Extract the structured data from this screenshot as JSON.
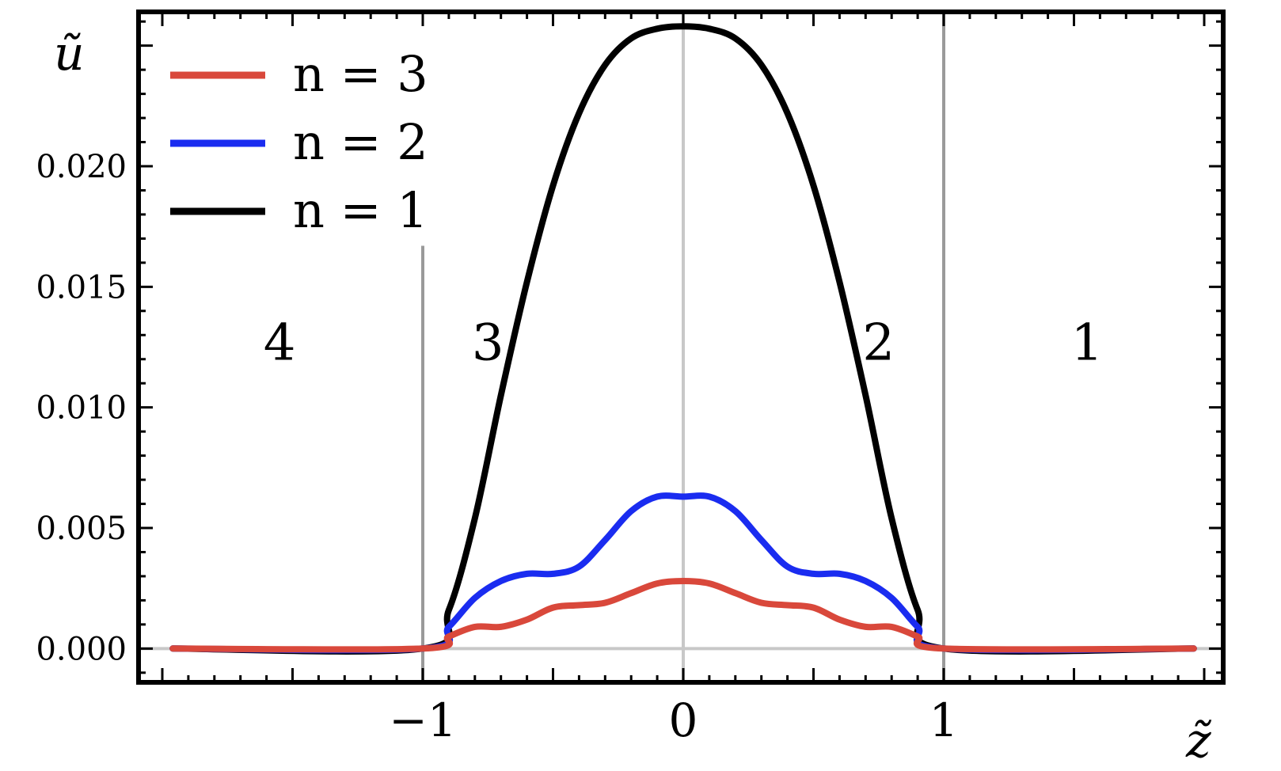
{
  "chart_data": {
    "type": "line",
    "xlabel": "z̃",
    "ylabel": "ũ",
    "xlim": [
      -2,
      2
    ],
    "ylim": [
      -0.0014,
      0.0264
    ],
    "x_ticks": [
      {
        "value": -1,
        "label": "−1"
      },
      {
        "value": 0,
        "label": "0"
      },
      {
        "value": 1,
        "label": "1"
      }
    ],
    "y_ticks": [
      {
        "value": 0.0,
        "label": "0.000"
      },
      {
        "value": 0.005,
        "label": "0.005"
      },
      {
        "value": 0.01,
        "label": "0.010"
      },
      {
        "value": 0.015,
        "label": "0.015"
      },
      {
        "value": 0.02,
        "label": "0.020"
      }
    ],
    "vertical_lines": [
      -1,
      0,
      1
    ],
    "region_labels": [
      {
        "text": "4",
        "x": -1.55,
        "y": 0.0127
      },
      {
        "text": "3",
        "x": -0.75,
        "y": 0.0127
      },
      {
        "text": "2",
        "x": 0.75,
        "y": 0.0127
      },
      {
        "text": "1",
        "x": 1.55,
        "y": 0.0127
      }
    ],
    "legend_position": "top-left",
    "series": [
      {
        "name": "n = 3",
        "color": "#d9483b",
        "x": [
          -1.96,
          -1.0,
          -0.9,
          -0.8,
          -0.7,
          -0.6,
          -0.5,
          -0.4,
          -0.3,
          -0.2,
          -0.1,
          0.0,
          0.1,
          0.2,
          0.3,
          0.4,
          0.5,
          0.6,
          0.7,
          0.8,
          0.9,
          1.0,
          1.96
        ],
        "values": [
          0.0,
          0.0,
          0.0005,
          0.0009,
          0.0009,
          0.0012,
          0.0017,
          0.0018,
          0.0019,
          0.0023,
          0.0027,
          0.0028,
          0.0027,
          0.0023,
          0.0019,
          0.0018,
          0.0017,
          0.0012,
          0.0009,
          0.0009,
          0.0005,
          0.0,
          0.0
        ]
      },
      {
        "name": "n = 2",
        "color": "#1a2cf0",
        "x": [
          -1.96,
          -1.0,
          -0.9,
          -0.8,
          -0.7,
          -0.6,
          -0.5,
          -0.4,
          -0.3,
          -0.2,
          -0.1,
          0.0,
          0.1,
          0.2,
          0.3,
          0.4,
          0.5,
          0.6,
          0.7,
          0.8,
          0.9,
          1.0,
          1.96
        ],
        "values": [
          0.0,
          0.0,
          0.0009,
          0.0021,
          0.0028,
          0.0031,
          0.0031,
          0.0034,
          0.0045,
          0.0057,
          0.0063,
          0.0063,
          0.0063,
          0.0057,
          0.0045,
          0.0034,
          0.0031,
          0.0031,
          0.0028,
          0.0021,
          0.0009,
          0.0,
          0.0
        ]
      },
      {
        "name": "n = 1",
        "color": "#000000",
        "x": [
          -1.96,
          -1.0,
          -0.9,
          -0.8,
          -0.7,
          -0.6,
          -0.5,
          -0.4,
          -0.3,
          -0.2,
          -0.1,
          0.0,
          0.1,
          0.2,
          0.3,
          0.4,
          0.5,
          0.6,
          0.7,
          0.8,
          0.9,
          1.0,
          1.96
        ],
        "values": [
          0.0,
          0.0,
          0.0016,
          0.0054,
          0.0105,
          0.0152,
          0.0192,
          0.0222,
          0.0242,
          0.0253,
          0.0257,
          0.0258,
          0.0257,
          0.0253,
          0.0242,
          0.0222,
          0.0192,
          0.0152,
          0.0105,
          0.0054,
          0.0016,
          0.0,
          0.0
        ]
      }
    ]
  }
}
